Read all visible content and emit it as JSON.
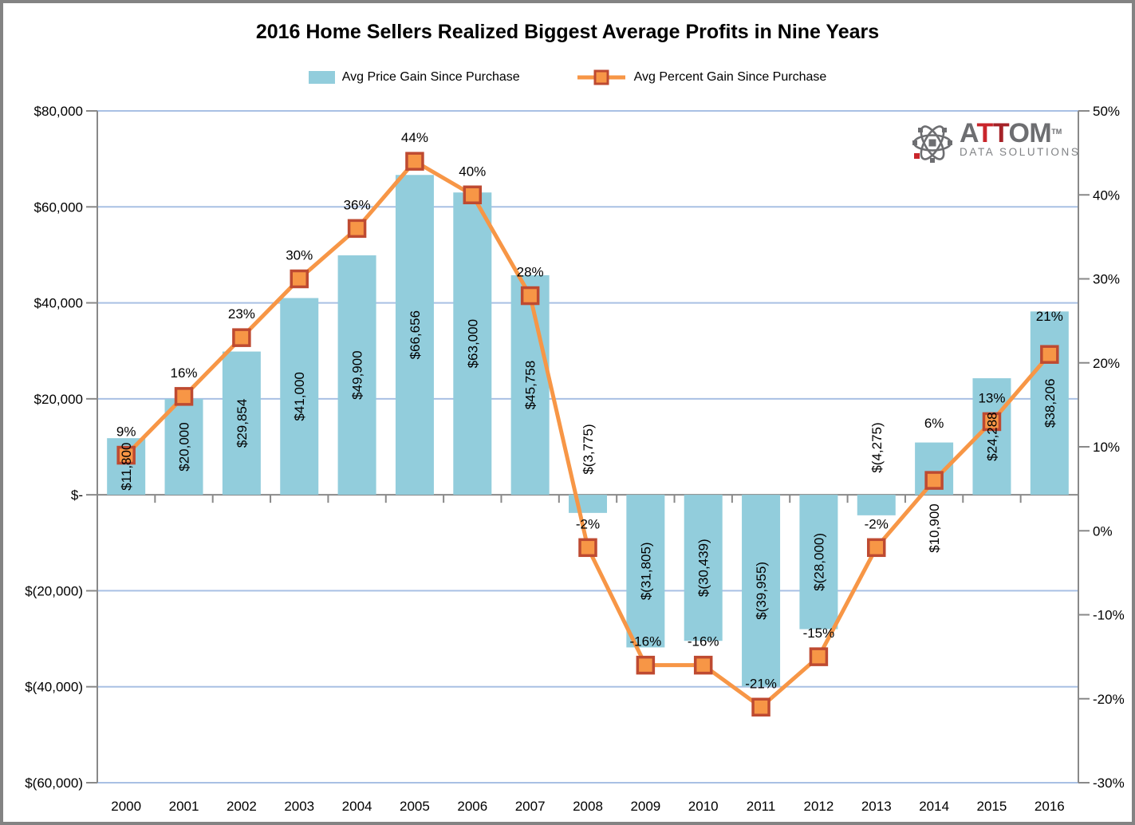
{
  "title": "2016 Home Sellers Realized Biggest Average Profits in Nine Years",
  "legend": [
    {
      "label": "Avg Price Gain Since Purchase"
    },
    {
      "label": "Avg Percent Gain Since Purchase"
    }
  ],
  "logo": {
    "letter_a": "A",
    "letter_t1": "T",
    "letter_t2": "T",
    "letters_om": "OM",
    "trademark": "TM",
    "subtitle": "DATA SOLUTIONS"
  },
  "colors": {
    "bar": "#92CDDC",
    "line": "#F79646",
    "marker_fill": "#F79646",
    "marker_border": "#BE4A31",
    "gridline": "#A9C0E4",
    "axis": "#898989",
    "label_text": "#000000",
    "logo_gray": "#6D6E71",
    "logo_red1": "#C9252B",
    "logo_red2": "#A52228",
    "logo_sub_gray": "#808285"
  },
  "chart_data": {
    "type": "bar+line combo",
    "title": "2016 Home Sellers Realized Biggest Average Profits in Nine Years",
    "categories": [
      "2000",
      "2001",
      "2002",
      "2003",
      "2004",
      "2005",
      "2006",
      "2007",
      "2008",
      "2009",
      "2010",
      "2011",
      "2012",
      "2013",
      "2014",
      "2015",
      "2016"
    ],
    "series": [
      {
        "name": "Avg Price Gain Since Purchase",
        "type": "bar",
        "axis": "left",
        "values": [
          11800,
          20000,
          29854,
          41000,
          49900,
          66656,
          63000,
          45758,
          -3775,
          -31805,
          -30439,
          -39955,
          -28000,
          -4275,
          10900,
          24288,
          38206
        ],
        "labels": [
          "$11,800",
          "$20,000",
          "$29,854",
          "$41,000",
          "$49,900",
          "$66,656",
          "$63,000",
          "$45,758",
          "$(3,775)",
          "$(31,805)",
          "$(30,439)",
          "$(39,955)",
          "$(28,000)",
          "$(4,275)",
          "$10,900",
          "$24,288",
          "$38,206"
        ]
      },
      {
        "name": "Avg Percent Gain Since Purchase",
        "type": "line",
        "axis": "right",
        "values": [
          9,
          16,
          23,
          30,
          36,
          44,
          40,
          28,
          -2,
          -16,
          -16,
          -21,
          -15,
          -2,
          6,
          13,
          21
        ],
        "labels": [
          "9%",
          "16%",
          "23%",
          "30%",
          "36%",
          "44%",
          "40%",
          "28%",
          "-2%",
          "-16%",
          "-16%",
          "-21%",
          "-15%",
          "-2%",
          "6%",
          "13%",
          "21%"
        ]
      }
    ],
    "left_axis": {
      "labels": [
        "$80,000",
        "$60,000",
        "$40,000",
        "$20,000",
        "$-",
        "$(20,000)",
        "$(40,000)",
        "$(60,000)"
      ],
      "values": [
        80000,
        60000,
        40000,
        20000,
        0,
        -20000,
        -40000,
        -60000
      ],
      "min": -60000,
      "max": 80000
    },
    "right_axis": {
      "labels": [
        "50%",
        "40%",
        "30%",
        "20%",
        "10%",
        "0%",
        "-10%",
        "-20%",
        "-30%"
      ],
      "values": [
        50,
        40,
        30,
        20,
        10,
        0,
        -10,
        -20,
        -30
      ],
      "min": -30,
      "max": 50
    },
    "grid": true,
    "legend_position": "top"
  }
}
